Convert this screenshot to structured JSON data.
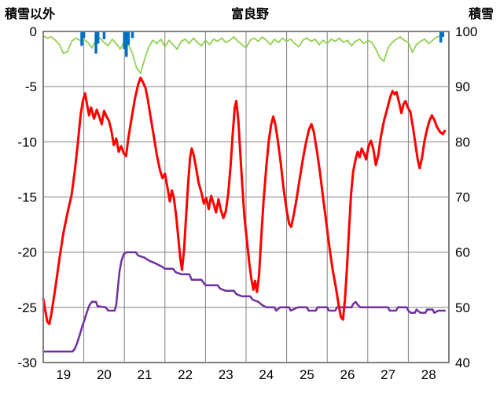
{
  "titles": {
    "left": "積雪以外",
    "center": "富良野",
    "right": "積雪"
  },
  "chart_data": {
    "type": "line",
    "title": "富良野",
    "left_axis": {
      "label": "積雪以外",
      "ticks": [
        0,
        -5,
        -10,
        -15,
        -20,
        -25,
        -30
      ],
      "min": -30,
      "max": 0
    },
    "right_axis": {
      "label": "積雪",
      "ticks": [
        100,
        90,
        80,
        70,
        60,
        50,
        40
      ],
      "min": 40,
      "max": 100
    },
    "x_axis": {
      "tick_labels": [
        "19",
        "20",
        "21",
        "22",
        "23",
        "24",
        "25",
        "26",
        "27",
        "28"
      ],
      "min": 19,
      "max": 29
    },
    "grid": true,
    "legend": "none",
    "colors": {
      "red": "#ff0000",
      "purple": "#7030a0",
      "green": "#92d050",
      "blue": "#0070c0",
      "grid": "#808080",
      "text": "#000000"
    },
    "series": [
      {
        "id": "green-line",
        "axis": "left",
        "type": "line",
        "color_key": "green",
        "width": 1.8,
        "start": 19.0,
        "step": 0.1,
        "values": [
          -0.4,
          -0.6,
          -0.5,
          -0.8,
          -1.2,
          -2.0,
          -1.8,
          -0.9,
          -0.6,
          -0.8,
          -0.7,
          -1.0,
          -1.5,
          -0.8,
          -0.6,
          -1.0,
          -1.3,
          -0.7,
          -1.1,
          -1.6,
          -0.9,
          -1.2,
          -2.0,
          -3.3,
          -3.8,
          -2.5,
          -1.4,
          -0.8,
          -1.1,
          -0.7,
          -1.4,
          -0.8,
          -1.2,
          -1.6,
          -0.9,
          -0.7,
          -1.1,
          -0.6,
          -1.0,
          -1.3,
          -0.8,
          -1.2,
          -0.7,
          -0.9,
          -0.6,
          -1.0,
          -0.8,
          -0.5,
          -0.9,
          -1.2,
          -1.5,
          -0.8,
          -0.6,
          -0.9,
          -0.5,
          -0.8,
          -1.2,
          -0.7,
          -1.0,
          -0.6,
          -0.9,
          -0.7,
          -1.1,
          -1.4,
          -0.8,
          -0.6,
          -0.9,
          -0.7,
          -1.2,
          -0.8,
          -1.1,
          -0.7,
          -0.9,
          -0.6,
          -1.0,
          -0.8,
          -1.3,
          -0.9,
          -0.7,
          -1.1,
          -0.8,
          -1.0,
          -1.6,
          -2.4,
          -2.7,
          -1.5,
          -1.0,
          -0.7,
          -0.5,
          -0.8,
          -1.0,
          -1.9,
          -1.2,
          -0.9,
          -0.7,
          -1.1,
          -0.8,
          -0.5,
          -0.4
        ]
      },
      {
        "id": "blue-bars",
        "axis": "left",
        "type": "bars_from_top",
        "color_key": "blue",
        "width": 3.5,
        "points": [
          [
            19.95,
            -1.3
          ],
          [
            20.0,
            -0.6
          ],
          [
            20.3,
            -2.0
          ],
          [
            20.35,
            -1.1
          ],
          [
            20.5,
            -0.7
          ],
          [
            21.0,
            -1.6
          ],
          [
            21.05,
            -2.3
          ],
          [
            21.1,
            -1.2
          ],
          [
            21.2,
            -0.6
          ],
          [
            28.8,
            -1.0
          ],
          [
            28.85,
            -0.5
          ]
        ]
      },
      {
        "id": "purple-line",
        "axis": "right",
        "type": "line",
        "color_key": "purple",
        "width": 2.5,
        "points": [
          [
            19.0,
            42
          ],
          [
            19.72,
            42
          ],
          [
            19.78,
            42.5
          ],
          [
            19.84,
            43.6
          ],
          [
            19.9,
            45.0
          ],
          [
            19.96,
            46.5
          ],
          [
            20.02,
            47.8
          ],
          [
            20.08,
            49.2
          ],
          [
            20.14,
            50.4
          ],
          [
            20.2,
            51.0
          ],
          [
            20.3,
            51.0
          ],
          [
            20.34,
            50.2
          ],
          [
            20.54,
            50.0
          ],
          [
            20.6,
            49.4
          ],
          [
            20.76,
            49.4
          ],
          [
            20.8,
            50.5
          ],
          [
            20.84,
            53.5
          ],
          [
            20.88,
            56.5
          ],
          [
            20.93,
            58.5
          ],
          [
            20.98,
            59.6
          ],
          [
            21.05,
            60.0
          ],
          [
            21.28,
            60.0
          ],
          [
            21.34,
            59.4
          ],
          [
            21.5,
            59.0
          ],
          [
            21.6,
            58.5
          ],
          [
            21.76,
            58.0
          ],
          [
            21.92,
            57.4
          ],
          [
            22.0,
            57.0
          ],
          [
            22.2,
            57.0
          ],
          [
            22.26,
            56.4
          ],
          [
            22.4,
            56.0
          ],
          [
            22.6,
            56.0
          ],
          [
            22.66,
            55.0
          ],
          [
            22.9,
            55.0
          ],
          [
            22.96,
            54.4
          ],
          [
            23.0,
            54.0
          ],
          [
            23.3,
            54.0
          ],
          [
            23.36,
            53.4
          ],
          [
            23.5,
            53.0
          ],
          [
            23.7,
            53.0
          ],
          [
            23.76,
            52.4
          ],
          [
            23.9,
            52.0
          ],
          [
            24.1,
            52.0
          ],
          [
            24.16,
            51.4
          ],
          [
            24.3,
            51.0
          ],
          [
            24.4,
            50.4
          ],
          [
            24.5,
            50.0
          ],
          [
            24.7,
            50.0
          ],
          [
            24.74,
            49.4
          ],
          [
            24.84,
            50.0
          ],
          [
            25.06,
            50.0
          ],
          [
            25.1,
            49.4
          ],
          [
            25.28,
            50.0
          ],
          [
            25.5,
            50.0
          ],
          [
            25.54,
            49.4
          ],
          [
            25.72,
            49.4
          ],
          [
            25.76,
            50.0
          ],
          [
            26.0,
            50.0
          ],
          [
            26.04,
            49.4
          ],
          [
            26.2,
            49.4
          ],
          [
            26.24,
            50.0
          ],
          [
            26.6,
            50.0
          ],
          [
            26.64,
            50.6
          ],
          [
            26.7,
            51.0
          ],
          [
            26.76,
            50.4
          ],
          [
            26.82,
            50.0
          ],
          [
            27.5,
            50.0
          ],
          [
            27.54,
            49.4
          ],
          [
            27.7,
            49.4
          ],
          [
            27.74,
            50.0
          ],
          [
            27.96,
            50.0
          ],
          [
            28.0,
            49.4
          ],
          [
            28.06,
            49.0
          ],
          [
            28.16,
            49.0
          ],
          [
            28.2,
            49.6
          ],
          [
            28.3,
            49.0
          ],
          [
            28.42,
            49.0
          ],
          [
            28.46,
            49.6
          ],
          [
            28.6,
            49.6
          ],
          [
            28.64,
            49.0
          ],
          [
            28.74,
            49.4
          ],
          [
            28.9,
            49.4
          ]
        ]
      },
      {
        "id": "red-line",
        "axis": "left",
        "type": "line",
        "color_key": "red",
        "width": 3,
        "points": [
          [
            19.0,
            -24.2
          ],
          [
            19.05,
            -25.3
          ],
          [
            19.1,
            -26.3
          ],
          [
            19.15,
            -26.5
          ],
          [
            19.2,
            -25.6
          ],
          [
            19.3,
            -23.2
          ],
          [
            19.4,
            -20.6
          ],
          [
            19.5,
            -18.2
          ],
          [
            19.6,
            -16.4
          ],
          [
            19.7,
            -14.8
          ],
          [
            19.78,
            -12.6
          ],
          [
            19.85,
            -10.2
          ],
          [
            19.92,
            -7.6
          ],
          [
            19.97,
            -6.4
          ],
          [
            20.03,
            -5.6
          ],
          [
            20.08,
            -6.6
          ],
          [
            20.13,
            -7.6
          ],
          [
            20.18,
            -6.9
          ],
          [
            20.25,
            -7.9
          ],
          [
            20.32,
            -7.1
          ],
          [
            20.38,
            -7.7
          ],
          [
            20.44,
            -8.4
          ],
          [
            20.5,
            -7.2
          ],
          [
            20.56,
            -7.7
          ],
          [
            20.62,
            -8.1
          ],
          [
            20.68,
            -9.0
          ],
          [
            20.74,
            -10.3
          ],
          [
            20.8,
            -9.7
          ],
          [
            20.86,
            -10.9
          ],
          [
            20.92,
            -10.4
          ],
          [
            20.98,
            -11.0
          ],
          [
            21.04,
            -11.3
          ],
          [
            21.1,
            -9.6
          ],
          [
            21.18,
            -7.8
          ],
          [
            21.26,
            -6.1
          ],
          [
            21.34,
            -4.8
          ],
          [
            21.4,
            -4.2
          ],
          [
            21.46,
            -4.6
          ],
          [
            21.52,
            -5.1
          ],
          [
            21.58,
            -6.2
          ],
          [
            21.64,
            -7.6
          ],
          [
            21.72,
            -9.4
          ],
          [
            21.8,
            -11.2
          ],
          [
            21.88,
            -12.6
          ],
          [
            21.94,
            -13.3
          ],
          [
            22.0,
            -12.9
          ],
          [
            22.06,
            -14.1
          ],
          [
            22.12,
            -15.4
          ],
          [
            22.17,
            -14.4
          ],
          [
            22.22,
            -15.1
          ],
          [
            22.28,
            -16.8
          ],
          [
            22.33,
            -18.7
          ],
          [
            22.38,
            -20.6
          ],
          [
            22.42,
            -21.6
          ],
          [
            22.47,
            -19.8
          ],
          [
            22.52,
            -16.9
          ],
          [
            22.57,
            -13.9
          ],
          [
            22.62,
            -11.4
          ],
          [
            22.66,
            -10.6
          ],
          [
            22.71,
            -11.2
          ],
          [
            22.76,
            -12.2
          ],
          [
            22.83,
            -13.7
          ],
          [
            22.9,
            -14.6
          ],
          [
            22.96,
            -15.6
          ],
          [
            23.02,
            -15.1
          ],
          [
            23.08,
            -16.1
          ],
          [
            23.14,
            -14.9
          ],
          [
            23.2,
            -15.6
          ],
          [
            23.26,
            -16.4
          ],
          [
            23.32,
            -15.2
          ],
          [
            23.38,
            -16.2
          ],
          [
            23.44,
            -16.9
          ],
          [
            23.5,
            -16.3
          ],
          [
            23.56,
            -14.7
          ],
          [
            23.62,
            -12.1
          ],
          [
            23.67,
            -9.3
          ],
          [
            23.72,
            -6.9
          ],
          [
            23.76,
            -6.3
          ],
          [
            23.81,
            -8.1
          ],
          [
            23.86,
            -11.2
          ],
          [
            23.91,
            -14.2
          ],
          [
            23.96,
            -16.8
          ],
          [
            24.02,
            -18.9
          ],
          [
            24.08,
            -21.0
          ],
          [
            24.13,
            -22.4
          ],
          [
            24.18,
            -23.4
          ],
          [
            24.22,
            -22.6
          ],
          [
            24.27,
            -23.6
          ],
          [
            24.32,
            -22.1
          ],
          [
            24.37,
            -18.9
          ],
          [
            24.43,
            -15.4
          ],
          [
            24.5,
            -12.2
          ],
          [
            24.56,
            -9.9
          ],
          [
            24.62,
            -8.4
          ],
          [
            24.67,
            -7.7
          ],
          [
            24.72,
            -8.4
          ],
          [
            24.78,
            -9.8
          ],
          [
            24.85,
            -11.8
          ],
          [
            24.92,
            -14.1
          ],
          [
            25.0,
            -16.2
          ],
          [
            25.06,
            -17.4
          ],
          [
            25.11,
            -17.7
          ],
          [
            25.17,
            -16.7
          ],
          [
            25.24,
            -15.3
          ],
          [
            25.32,
            -13.4
          ],
          [
            25.4,
            -11.6
          ],
          [
            25.48,
            -10.0
          ],
          [
            25.55,
            -8.9
          ],
          [
            25.61,
            -8.4
          ],
          [
            25.67,
            -9.1
          ],
          [
            25.74,
            -10.7
          ],
          [
            25.82,
            -12.7
          ],
          [
            25.9,
            -15.1
          ],
          [
            25.98,
            -17.4
          ],
          [
            26.06,
            -19.7
          ],
          [
            26.14,
            -21.7
          ],
          [
            26.21,
            -23.1
          ],
          [
            26.28,
            -24.7
          ],
          [
            26.34,
            -25.9
          ],
          [
            26.39,
            -26.1
          ],
          [
            26.44,
            -24.2
          ],
          [
            26.49,
            -21.2
          ],
          [
            26.54,
            -17.8
          ],
          [
            26.59,
            -14.7
          ],
          [
            26.64,
            -12.7
          ],
          [
            26.7,
            -11.6
          ],
          [
            26.75,
            -10.9
          ],
          [
            26.8,
            -11.4
          ],
          [
            26.85,
            -10.6
          ],
          [
            26.91,
            -11.1
          ],
          [
            26.96,
            -11.6
          ],
          [
            27.02,
            -10.4
          ],
          [
            27.08,
            -9.9
          ],
          [
            27.14,
            -10.7
          ],
          [
            27.2,
            -12.1
          ],
          [
            27.26,
            -11.2
          ],
          [
            27.32,
            -9.6
          ],
          [
            27.4,
            -8.1
          ],
          [
            27.48,
            -7.0
          ],
          [
            27.55,
            -6.0
          ],
          [
            27.61,
            -5.4
          ],
          [
            27.66,
            -5.7
          ],
          [
            27.71,
            -5.5
          ],
          [
            27.77,
            -6.4
          ],
          [
            27.83,
            -7.4
          ],
          [
            27.88,
            -6.6
          ],
          [
            27.93,
            -6.3
          ],
          [
            27.99,
            -6.9
          ],
          [
            28.05,
            -7.3
          ],
          [
            28.11,
            -8.6
          ],
          [
            28.17,
            -10.1
          ],
          [
            28.23,
            -11.6
          ],
          [
            28.28,
            -12.4
          ],
          [
            28.34,
            -11.4
          ],
          [
            28.4,
            -9.9
          ],
          [
            28.46,
            -8.9
          ],
          [
            28.52,
            -8.1
          ],
          [
            28.58,
            -7.6
          ],
          [
            28.64,
            -8.0
          ],
          [
            28.7,
            -8.6
          ],
          [
            28.78,
            -9.1
          ],
          [
            28.85,
            -9.3
          ],
          [
            28.9,
            -9.0
          ]
        ]
      }
    ]
  }
}
